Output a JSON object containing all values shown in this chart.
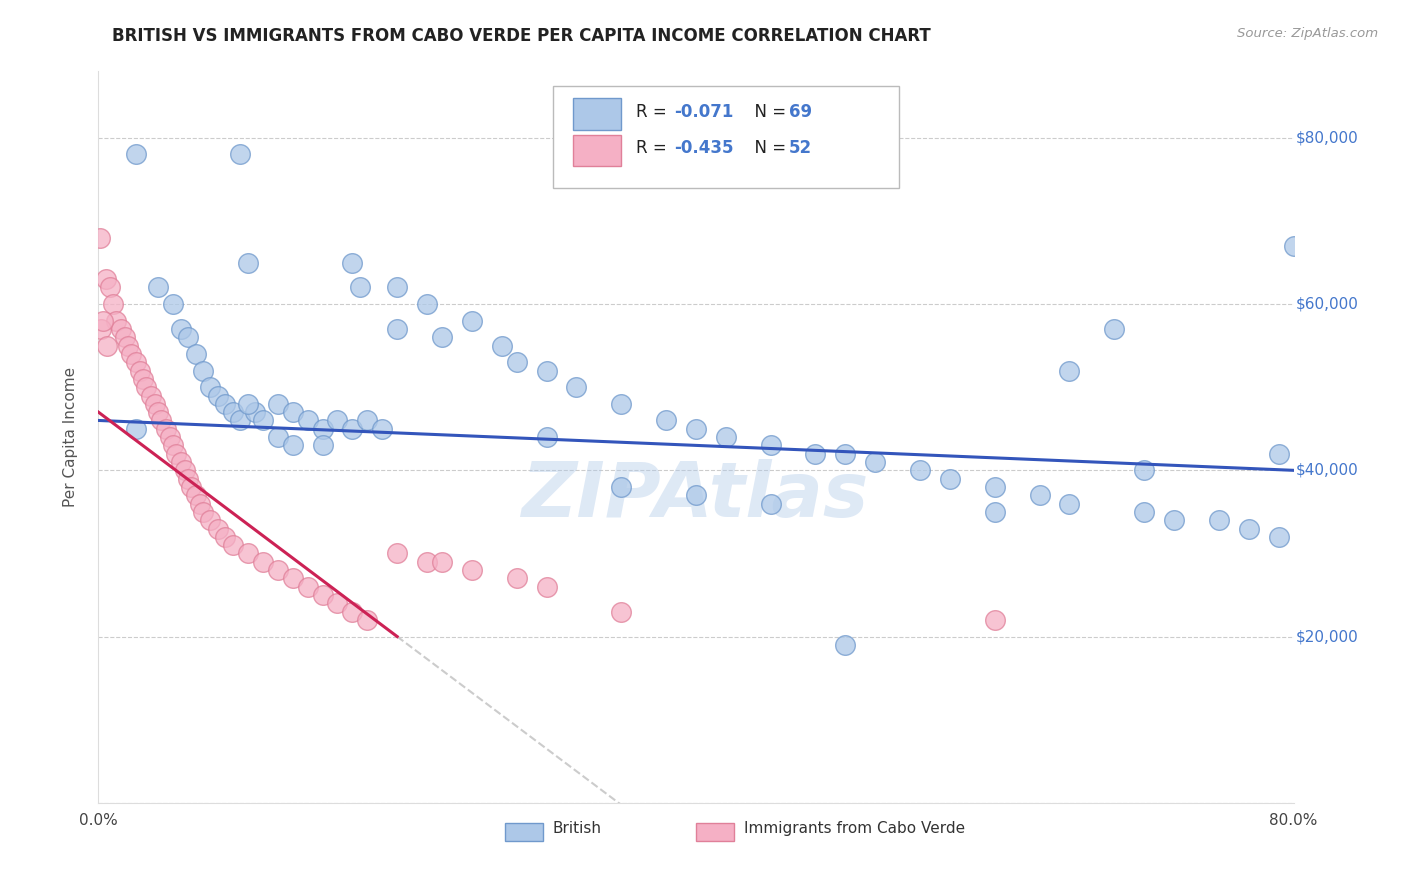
{
  "title": "BRITISH VS IMMIGRANTS FROM CABO VERDE PER CAPITA INCOME CORRELATION CHART",
  "source": "Source: ZipAtlas.com",
  "ylabel": "Per Capita Income",
  "xlim": [
    0.0,
    0.8
  ],
  "ylim": [
    0,
    88000
  ],
  "yticks": [
    0,
    20000,
    40000,
    60000,
    80000
  ],
  "ytick_labels": [
    "",
    "$20,000",
    "$40,000",
    "$60,000",
    "$80,000"
  ],
  "xtick_labels": [
    "0.0%",
    "",
    "",
    "",
    "",
    "",
    "",
    "",
    "80.0%"
  ],
  "legend_text1": "R =  -0.071  N = 69",
  "legend_text2": "R =  -0.435  N = 52",
  "british_color": "#adc8e8",
  "cabo_verde_color": "#f5b0c5",
  "british_edge_color": "#7099cc",
  "cabo_verde_edge_color": "#e08099",
  "regression_blue": "#3355bb",
  "regression_pink": "#cc2255",
  "regression_gray": "#cccccc",
  "tick_color": "#4477cc",
  "watermark": "ZIPAtlas",
  "watermark_color": "#adc8e8",
  "british_x": [
    0.025,
    0.095,
    0.17,
    0.175,
    0.22,
    0.2,
    0.23,
    0.27,
    0.28,
    0.3,
    0.32,
    0.35,
    0.38,
    0.4,
    0.25,
    0.42,
    0.45,
    0.2,
    0.48,
    0.5,
    0.52,
    0.55,
    0.57,
    0.6,
    0.63,
    0.65,
    0.68,
    0.7,
    0.72,
    0.75,
    0.77,
    0.79,
    0.025,
    0.04,
    0.05,
    0.055,
    0.06,
    0.065,
    0.07,
    0.075,
    0.08,
    0.085,
    0.09,
    0.095,
    0.1,
    0.105,
    0.11,
    0.12,
    0.13,
    0.14,
    0.15,
    0.16,
    0.17,
    0.18,
    0.19,
    0.1,
    0.12,
    0.13,
    0.15,
    0.8,
    0.3,
    0.35,
    0.4,
    0.45,
    0.5,
    0.6,
    0.65,
    0.7,
    0.79
  ],
  "british_y": [
    78000,
    78000,
    65000,
    62000,
    60000,
    57000,
    56000,
    55000,
    53000,
    52000,
    50000,
    48000,
    46000,
    45000,
    58000,
    44000,
    43000,
    62000,
    42000,
    42000,
    41000,
    40000,
    39000,
    38000,
    37000,
    36000,
    57000,
    35000,
    34000,
    34000,
    33000,
    32000,
    45000,
    62000,
    60000,
    57000,
    56000,
    54000,
    52000,
    50000,
    49000,
    48000,
    47000,
    46000,
    65000,
    47000,
    46000,
    48000,
    47000,
    46000,
    45000,
    46000,
    45000,
    46000,
    45000,
    48000,
    44000,
    43000,
    43000,
    67000,
    44000,
    38000,
    37000,
    36000,
    19000,
    35000,
    52000,
    40000,
    42000
  ],
  "cabo_x": [
    0.001,
    0.005,
    0.008,
    0.01,
    0.012,
    0.015,
    0.018,
    0.02,
    0.022,
    0.025,
    0.028,
    0.03,
    0.032,
    0.035,
    0.038,
    0.04,
    0.042,
    0.045,
    0.048,
    0.05,
    0.052,
    0.055,
    0.058,
    0.06,
    0.062,
    0.065,
    0.068,
    0.07,
    0.075,
    0.08,
    0.085,
    0.09,
    0.1,
    0.11,
    0.12,
    0.13,
    0.14,
    0.15,
    0.16,
    0.17,
    0.18,
    0.2,
    0.22,
    0.23,
    0.25,
    0.28,
    0.3,
    0.35,
    0.002,
    0.003,
    0.006,
    0.6
  ],
  "cabo_y": [
    68000,
    63000,
    62000,
    60000,
    58000,
    57000,
    56000,
    55000,
    54000,
    53000,
    52000,
    51000,
    50000,
    49000,
    48000,
    47000,
    46000,
    45000,
    44000,
    43000,
    42000,
    41000,
    40000,
    39000,
    38000,
    37000,
    36000,
    35000,
    34000,
    33000,
    32000,
    31000,
    30000,
    29000,
    28000,
    27000,
    26000,
    25000,
    24000,
    23000,
    22000,
    30000,
    29000,
    29000,
    28000,
    27000,
    26000,
    23000,
    57000,
    58000,
    55000,
    22000
  ]
}
